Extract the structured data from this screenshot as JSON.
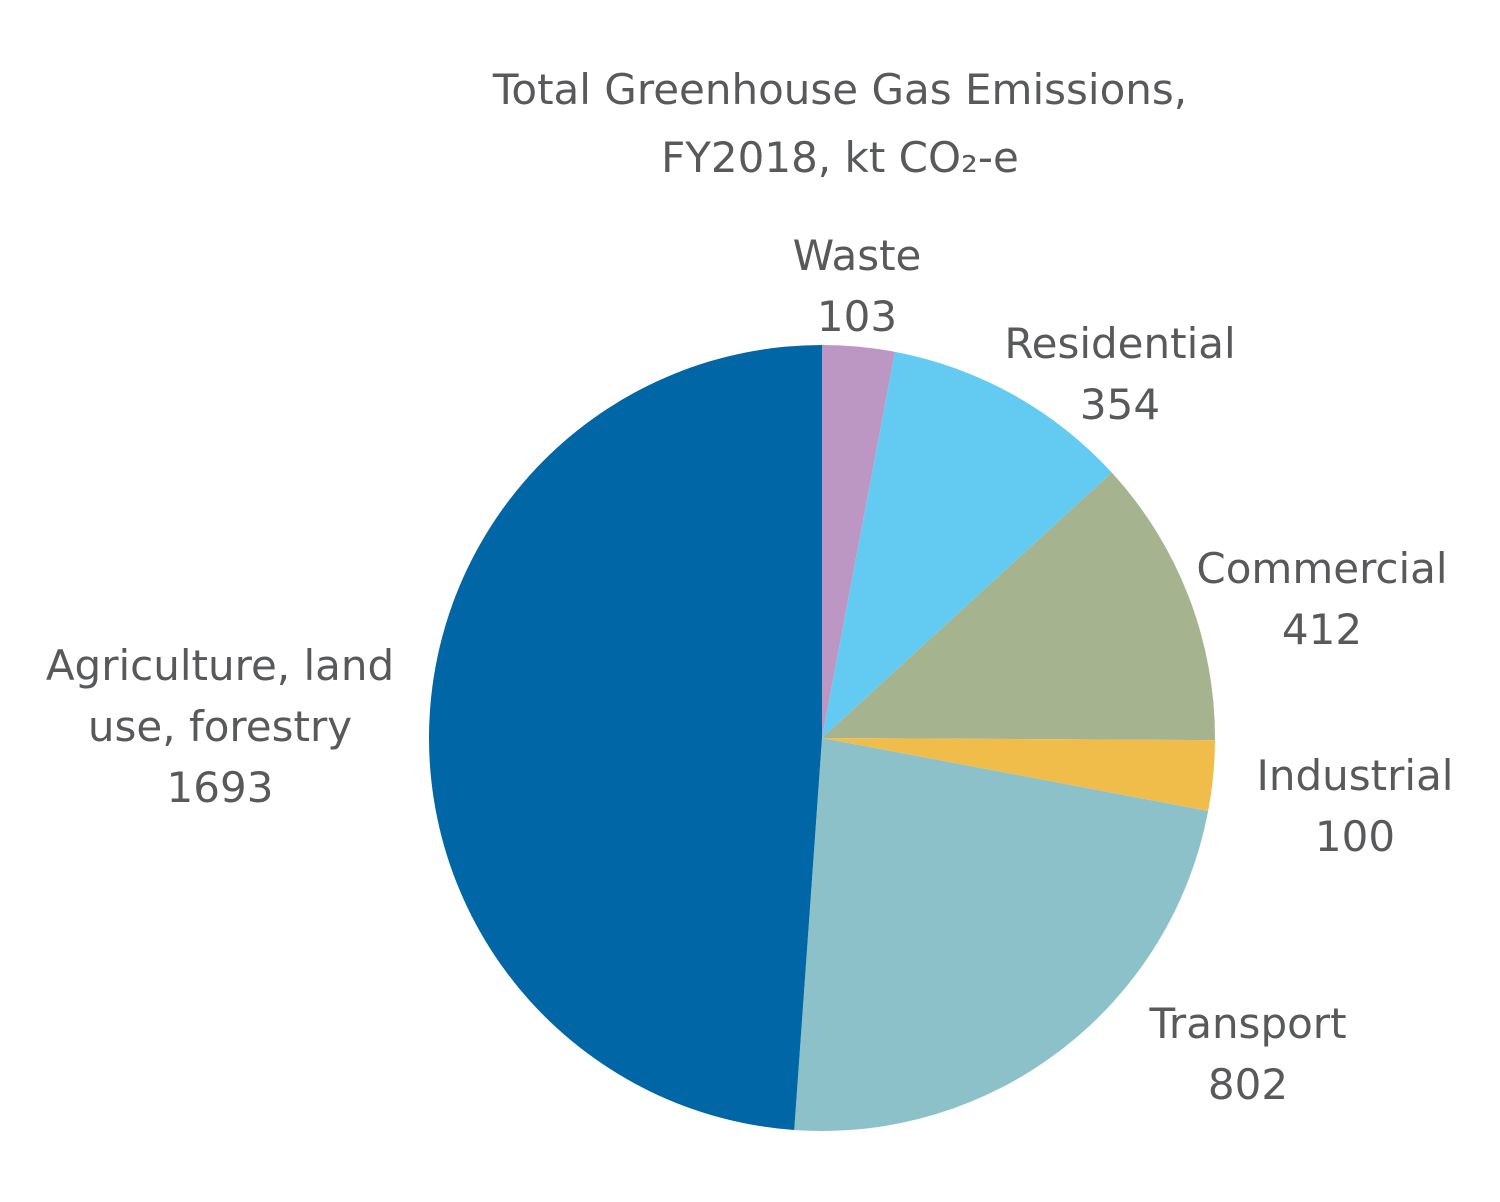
{
  "chart_data": {
    "type": "pie",
    "title": [
      "Total Greenhouse Gas Emissions,",
      "FY2018, kt CO₂-e"
    ],
    "categories": [
      "Waste",
      "Residential",
      "Commercial",
      "Industrial",
      "Transport",
      "Agriculture, land use, forestry"
    ],
    "values": [
      103,
      354,
      412,
      100,
      802,
      1693
    ],
    "colors": [
      "#bc97c4",
      "#63cbf1",
      "#a6b38f",
      "#f0bd4b",
      "#8dc1ca",
      "#0066a6"
    ]
  }
}
